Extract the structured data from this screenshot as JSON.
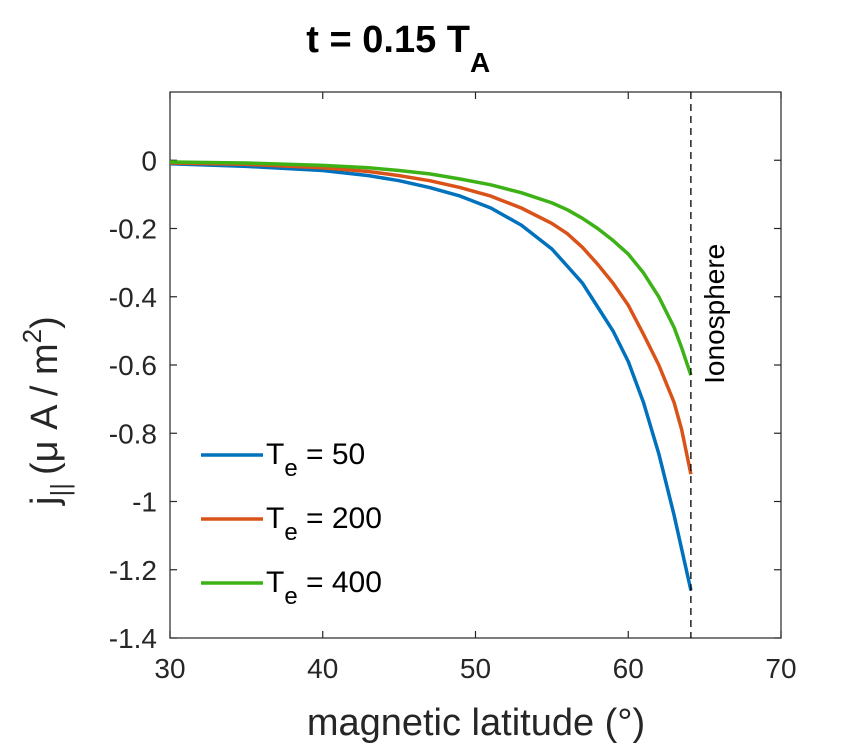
{
  "chart_data": {
    "type": "line",
    "title": "t = 0.15 T",
    "title_sub": "A",
    "xlabel": "magnetic latitude (°)",
    "ylabel_prefix": "j",
    "ylabel_sub": "||",
    "ylabel_units": "(μ A / m",
    "ylabel_sup": "2",
    "ylabel_close": ")",
    "xlim": [
      30,
      70
    ],
    "ylim": [
      -1.4,
      0.2
    ],
    "xticks": [
      30,
      40,
      50,
      60,
      70
    ],
    "xtick_labels": [
      "30",
      "40",
      "50",
      "60",
      "70"
    ],
    "yticks": [
      0,
      -0.2,
      -0.4,
      -0.6,
      -0.8,
      -1,
      -1.2,
      -1.4
    ],
    "ytick_labels": [
      "0",
      "-0.2",
      "-0.4",
      "-0.6",
      "-0.8",
      "-1",
      "-1.2",
      "-1.4"
    ],
    "grid": false,
    "legend_position": "bottom-left",
    "annotation": {
      "text": "Ionosphere",
      "x": 64.1
    },
    "series": [
      {
        "name": "T",
        "name_sub": "e",
        "name_value": " = 50",
        "color": "#0072BD",
        "x": [
          30,
          35,
          40,
          43,
          45,
          47,
          49,
          51,
          53,
          55,
          56,
          57,
          58,
          59,
          60,
          61,
          62,
          63,
          63.5,
          64.1
        ],
        "y": [
          -0.01,
          -0.018,
          -0.03,
          -0.045,
          -0.06,
          -0.08,
          -0.105,
          -0.14,
          -0.19,
          -0.26,
          -0.31,
          -0.36,
          -0.43,
          -0.5,
          -0.59,
          -0.71,
          -0.86,
          -1.04,
          -1.14,
          -1.26
        ]
      },
      {
        "name": "T",
        "name_sub": "e",
        "name_value": " = 200",
        "color": "#D95319",
        "x": [
          30,
          35,
          40,
          43,
          45,
          47,
          49,
          51,
          53,
          55,
          56,
          57,
          58,
          59,
          60,
          61,
          62,
          63,
          63.5,
          64.1
        ],
        "y": [
          -0.008,
          -0.012,
          -0.022,
          -0.033,
          -0.045,
          -0.06,
          -0.08,
          -0.105,
          -0.14,
          -0.185,
          -0.215,
          -0.255,
          -0.305,
          -0.36,
          -0.425,
          -0.51,
          -0.6,
          -0.71,
          -0.79,
          -0.92
        ]
      },
      {
        "name": "T",
        "name_sub": "e",
        "name_value": " = 400",
        "color": "#3DB217",
        "x": [
          30,
          35,
          40,
          43,
          45,
          47,
          49,
          51,
          53,
          55,
          56,
          57,
          58,
          59,
          60,
          61,
          62,
          63,
          63.5,
          64.1
        ],
        "y": [
          -0.005,
          -0.008,
          -0.015,
          -0.022,
          -0.03,
          -0.04,
          -0.055,
          -0.072,
          -0.095,
          -0.125,
          -0.145,
          -0.17,
          -0.2,
          -0.235,
          -0.275,
          -0.33,
          -0.4,
          -0.49,
          -0.55,
          -0.63
        ]
      }
    ]
  }
}
